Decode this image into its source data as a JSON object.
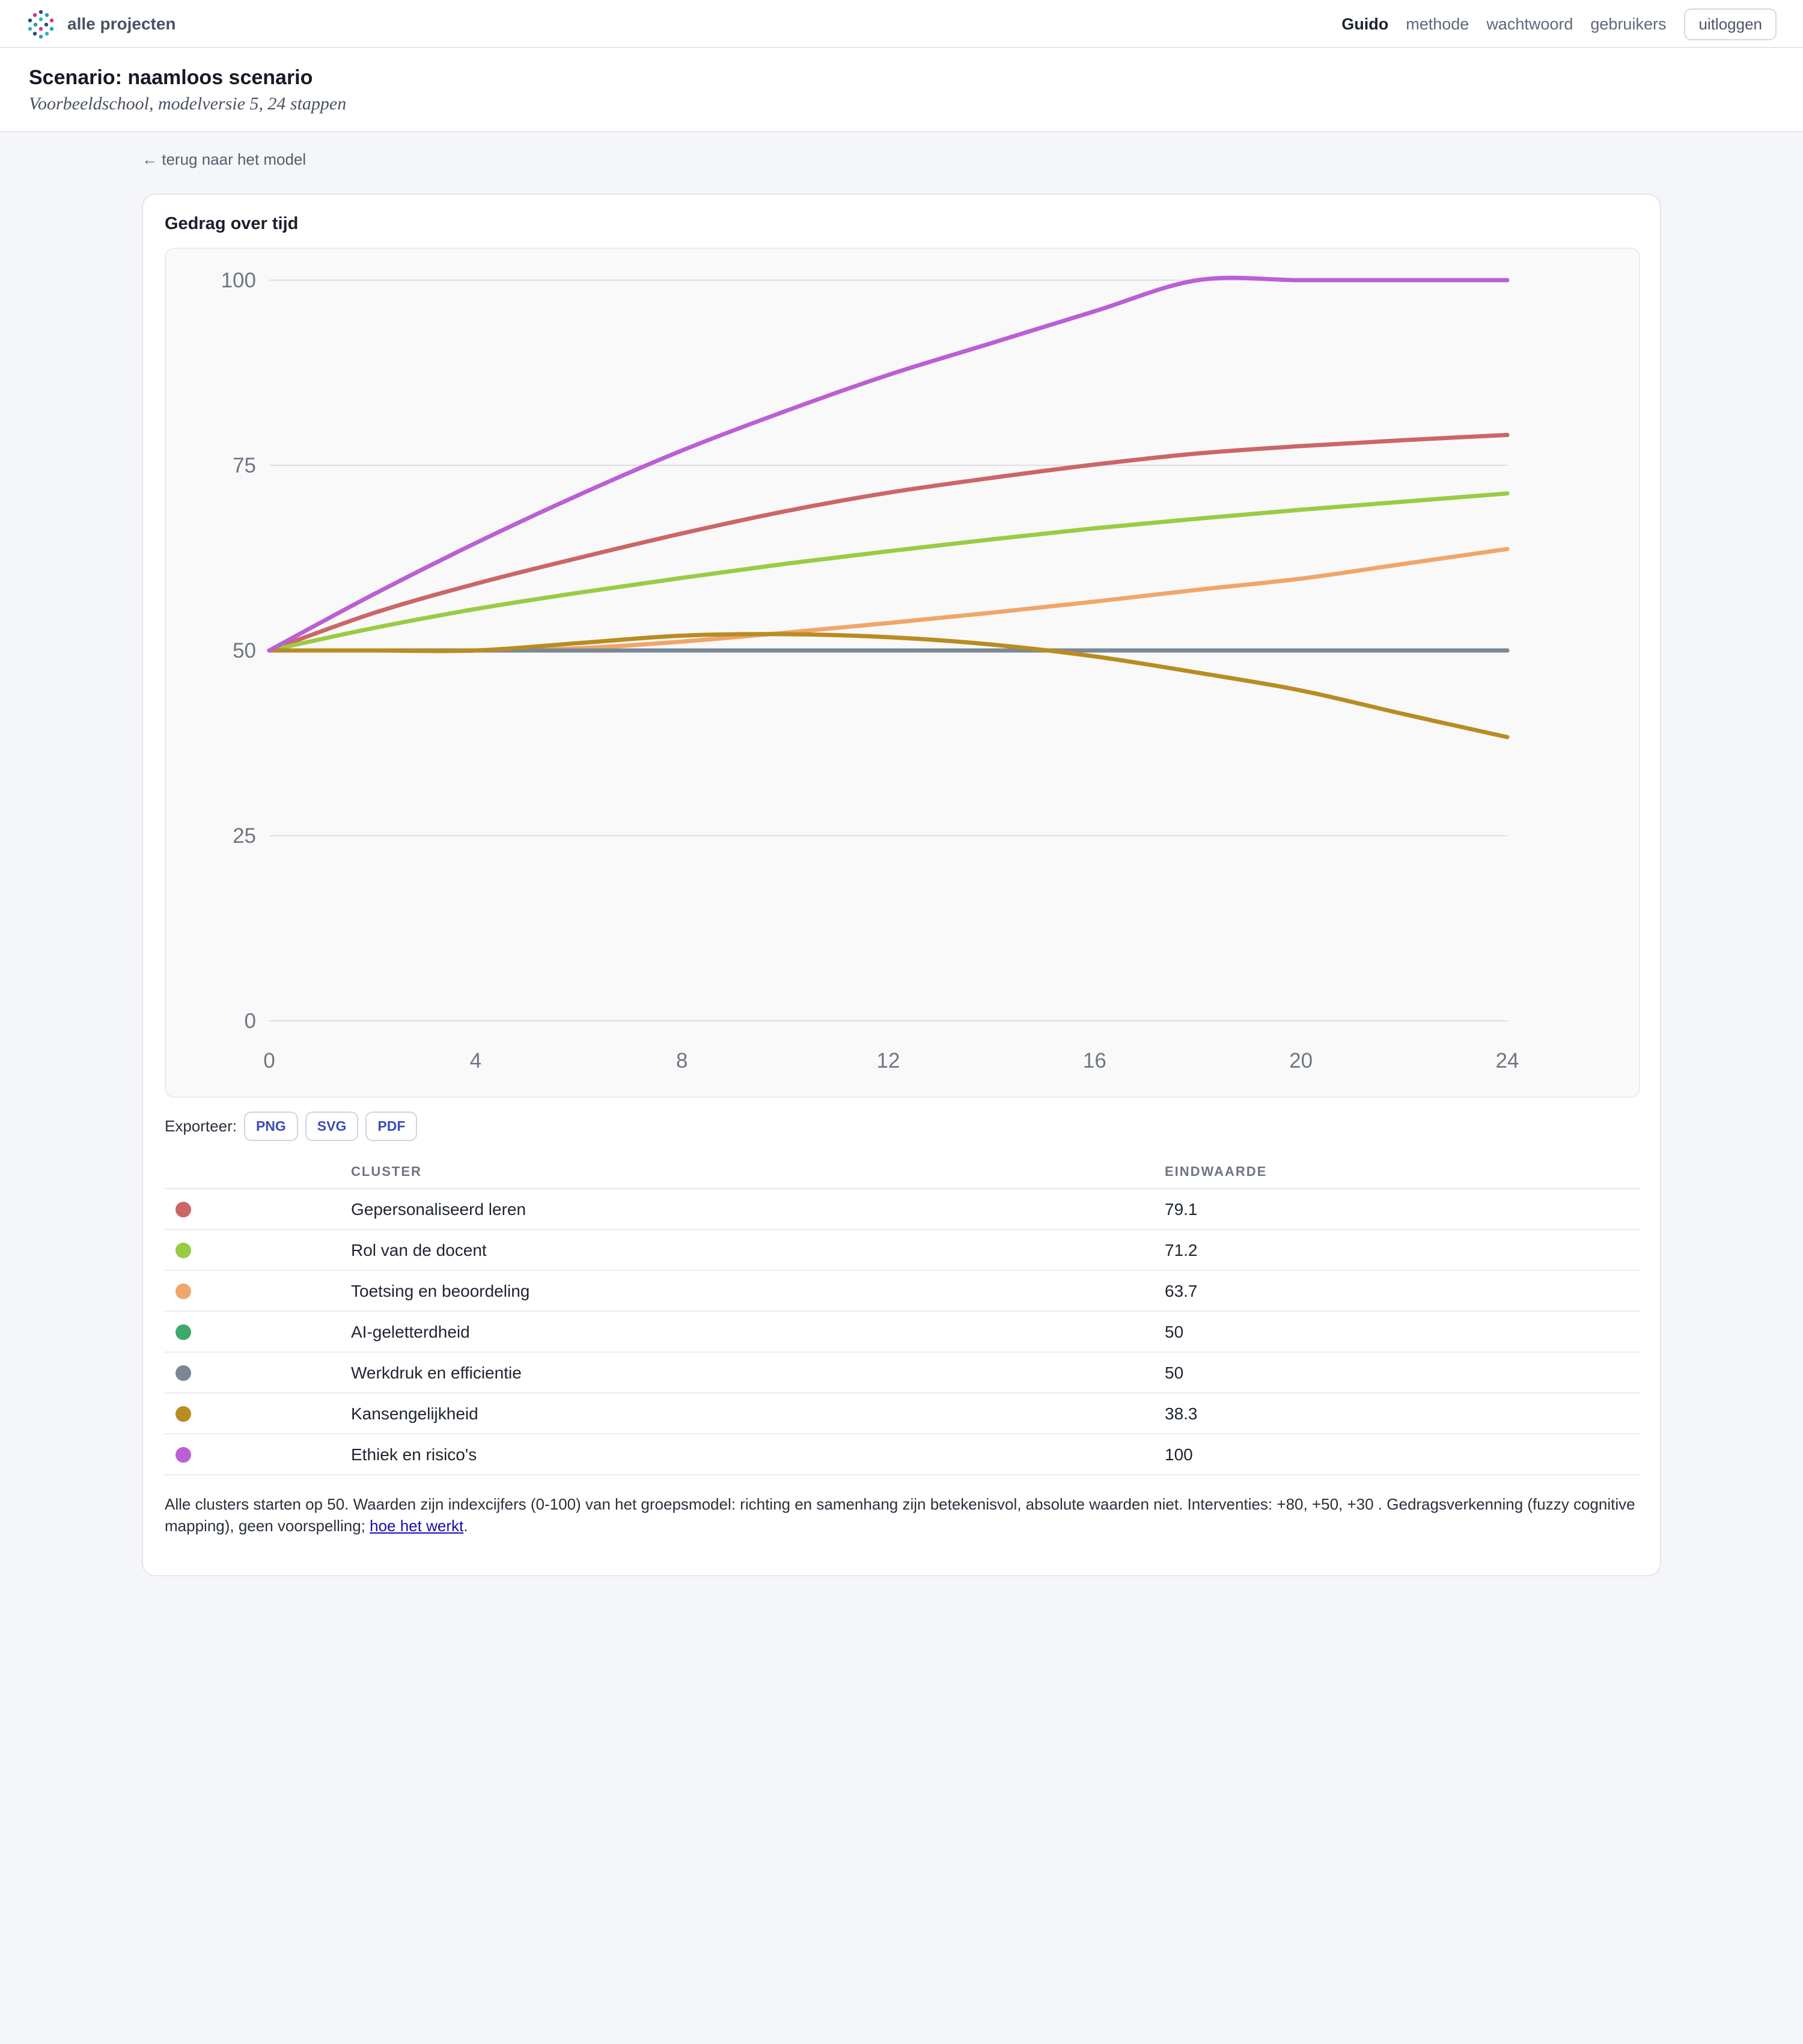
{
  "topbar": {
    "brand_label": "alle projecten",
    "nav": {
      "user": "Guido",
      "method": "methode",
      "password": "wachtwoord",
      "users": "gebruikers",
      "logout": "uitloggen"
    }
  },
  "scenario": {
    "title": "Scenario: naamloos scenario",
    "subtitle": "Voorbeeldschool, modelversie 5, 24 stappen"
  },
  "back_link": "← terug naar het model",
  "card": {
    "title": "Gedrag over tijd",
    "export_label": "Exporteer:",
    "export_buttons": [
      "PNG",
      "SVG",
      "PDF"
    ]
  },
  "table": {
    "headers": {
      "cluster": "CLUSTER",
      "end_value": "EINDWAARDE"
    },
    "rows": [
      {
        "name": "Gepersonaliseerd leren",
        "value": "79.1",
        "color": "#cc6666"
      },
      {
        "name": "Rol van de docent",
        "value": "71.2",
        "color": "#99cc44"
      },
      {
        "name": "Toetsing en beoordeling",
        "value": "63.7",
        "color": "#f0a66a"
      },
      {
        "name": "AI-geletterdheid",
        "value": "50",
        "color": "#3eaa6a"
      },
      {
        "name": "Werkdruk en efficientie",
        "value": "50",
        "color": "#7a8896"
      },
      {
        "name": "Kansengelijkheid",
        "value": "38.3",
        "color": "#b98c22"
      },
      {
        "name": "Ethiek en risico's",
        "value": "100",
        "color": "#bb5fd4"
      }
    ]
  },
  "footnote": {
    "text": "Alle clusters starten op 50. Waarden zijn indexcijfers (0-100) van het groepsmodel: richting en samenhang zijn betekenisvol, absolute waarden niet. Interventies: +80, +50, +30 . Gedragsverkenning (fuzzy cognitive mapping), geen voorspelling; ",
    "link": "hoe het werkt",
    "end": "."
  },
  "chart_data": {
    "type": "line",
    "title": "Gedrag over tijd",
    "xlabel": "",
    "ylabel": "",
    "xlim": [
      0,
      24
    ],
    "ylim": [
      0,
      100
    ],
    "x_ticks": [
      0,
      4,
      8,
      12,
      16,
      20,
      24
    ],
    "y_ticks": [
      0,
      25,
      50,
      75,
      100
    ],
    "grid": "horizontal",
    "x": [
      0,
      2,
      4,
      6,
      8,
      10,
      12,
      14,
      16,
      18,
      20,
      22,
      24
    ],
    "series": [
      {
        "name": "Gepersonaliseerd leren",
        "color": "#cc6666",
        "values": [
          50,
          55,
          59,
          62.5,
          65.8,
          68.8,
          71.3,
          73.3,
          75.1,
          76.6,
          77.6,
          78.4,
          79.1
        ]
      },
      {
        "name": "Rol van de docent",
        "color": "#99cc44",
        "values": [
          50,
          53,
          55.6,
          57.8,
          59.8,
          61.7,
          63.4,
          65,
          66.5,
          67.8,
          69,
          70.1,
          71.2
        ]
      },
      {
        "name": "Toetsing en beoordeling",
        "color": "#f0a66a",
        "values": [
          50,
          50,
          50,
          50.3,
          51.2,
          52.4,
          53.7,
          55.1,
          56.6,
          58.2,
          59.7,
          61.7,
          63.7
        ]
      },
      {
        "name": "AI-geletterdheid",
        "color": "#3eaa6a",
        "values": [
          50,
          50,
          50,
          50,
          50,
          50,
          50,
          50,
          50,
          50,
          50,
          50,
          50
        ]
      },
      {
        "name": "Werkdruk en efficientie",
        "color": "#7a8896",
        "values": [
          50,
          50,
          50,
          50,
          50,
          50,
          50,
          50,
          50,
          50,
          50,
          50,
          50
        ]
      },
      {
        "name": "Kansengelijkheid",
        "color": "#b98c22",
        "values": [
          50,
          50,
          50,
          51,
          52,
          52.2,
          51.8,
          50.8,
          49.2,
          47,
          44.6,
          41.4,
          38.3
        ]
      },
      {
        "name": "Ethiek en risico's",
        "color": "#bb5fd4",
        "values": [
          50,
          57.5,
          64.5,
          71,
          77,
          82.3,
          87.2,
          91.5,
          95.8,
          100,
          100,
          100,
          100
        ]
      }
    ]
  }
}
